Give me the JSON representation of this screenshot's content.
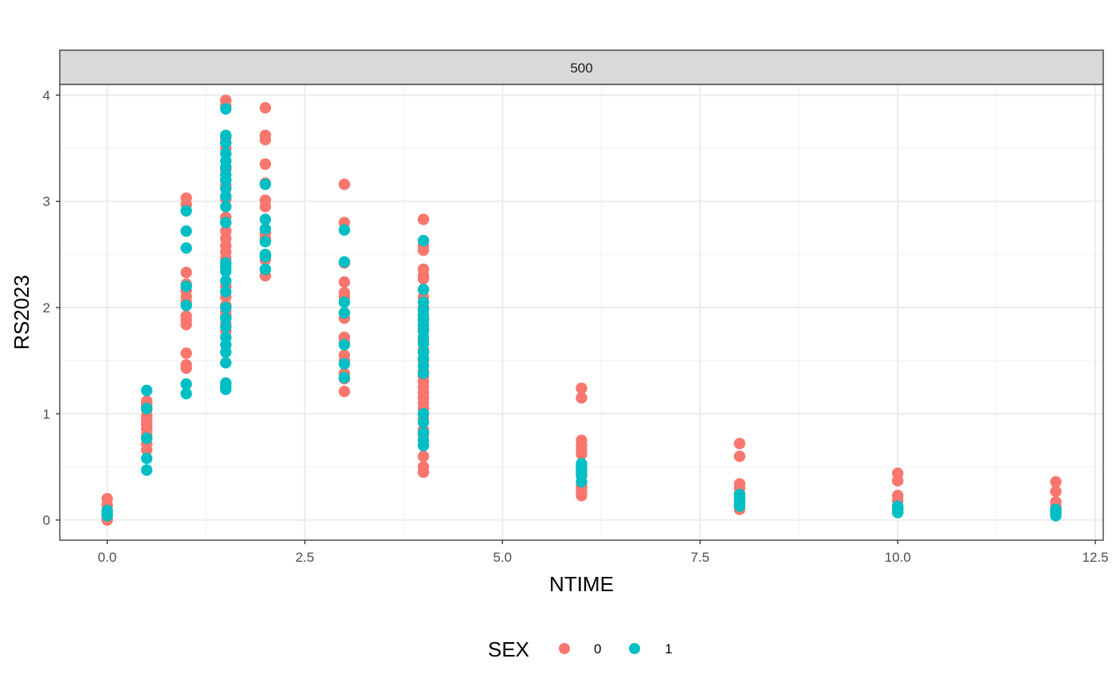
{
  "chart_data": {
    "type": "scatter",
    "facet": "500",
    "xlabel": "NTIME",
    "ylabel": "RS2023",
    "xlim": [
      -0.6,
      12.6
    ],
    "ylim": [
      -0.19,
      4.1
    ],
    "x_ticks": [
      0,
      2.5,
      5,
      7.5,
      10,
      12.5
    ],
    "x_tick_labels": [
      "0.0",
      "2.5",
      "5.0",
      "7.5",
      "10.0",
      "12.5"
    ],
    "y_ticks": [
      0,
      1,
      2,
      3,
      4
    ],
    "y_tick_labels": [
      "0",
      "1",
      "2",
      "3",
      "4"
    ],
    "grid": true,
    "legend": {
      "title": "SEX",
      "position": "bottom",
      "labels": [
        "0",
        "1"
      ]
    },
    "colors": {
      "0": "#F8766D",
      "1": "#00BFC4"
    },
    "series": [
      {
        "name": "0",
        "points": [
          [
            0,
            0.2
          ],
          [
            0,
            0.14
          ],
          [
            0,
            0.09
          ],
          [
            0,
            0.05
          ],
          [
            0,
            0.02
          ],
          [
            0,
            0.0
          ],
          [
            0.5,
            1.12
          ],
          [
            0.5,
            1.08
          ],
          [
            0.5,
            1.04
          ],
          [
            0.5,
            0.98
          ],
          [
            0.5,
            0.94
          ],
          [
            0.5,
            0.9
          ],
          [
            0.5,
            0.86
          ],
          [
            0.5,
            0.8
          ],
          [
            0.5,
            0.72
          ],
          [
            0.5,
            0.66
          ],
          [
            1,
            3.03
          ],
          [
            1,
            2.97
          ],
          [
            1,
            2.33
          ],
          [
            1,
            2.22
          ],
          [
            1,
            2.16
          ],
          [
            1,
            2.1
          ],
          [
            1,
            2.05
          ],
          [
            1,
            1.92
          ],
          [
            1,
            1.88
          ],
          [
            1,
            1.84
          ],
          [
            1,
            1.57
          ],
          [
            1,
            1.46
          ],
          [
            1,
            1.43
          ],
          [
            1.5,
            3.95
          ],
          [
            1.5,
            3.9
          ],
          [
            1.5,
            3.6
          ],
          [
            1.5,
            3.55
          ],
          [
            1.5,
            3.5
          ],
          [
            1.5,
            3.3
          ],
          [
            1.5,
            3.2
          ],
          [
            1.5,
            3.15
          ],
          [
            1.5,
            3.02
          ],
          [
            1.5,
            2.85
          ],
          [
            1.5,
            2.72
          ],
          [
            1.5,
            2.65
          ],
          [
            1.5,
            2.58
          ],
          [
            1.5,
            2.52
          ],
          [
            1.5,
            2.46
          ],
          [
            1.5,
            2.2
          ],
          [
            1.5,
            2.1
          ],
          [
            1.5,
            2.02
          ],
          [
            1.5,
            1.96
          ],
          [
            1.5,
            1.92
          ],
          [
            1.5,
            1.85
          ],
          [
            1.5,
            1.78
          ],
          [
            2,
            3.88
          ],
          [
            2,
            3.62
          ],
          [
            2,
            3.58
          ],
          [
            2,
            3.35
          ],
          [
            2,
            3.17
          ],
          [
            2,
            3.01
          ],
          [
            2,
            2.95
          ],
          [
            2,
            2.7
          ],
          [
            2,
            2.65
          ],
          [
            2,
            2.45
          ],
          [
            2,
            2.3
          ],
          [
            3,
            3.16
          ],
          [
            3,
            2.8
          ],
          [
            3,
            2.42
          ],
          [
            3,
            2.24
          ],
          [
            3,
            2.14
          ],
          [
            3,
            2.1
          ],
          [
            3,
            1.95
          ],
          [
            3,
            1.9
          ],
          [
            3,
            1.72
          ],
          [
            3,
            1.67
          ],
          [
            3,
            1.55
          ],
          [
            3,
            1.5
          ],
          [
            3,
            1.38
          ],
          [
            3,
            1.33
          ],
          [
            3,
            1.21
          ],
          [
            4,
            2.83
          ],
          [
            4,
            2.58
          ],
          [
            4,
            2.54
          ],
          [
            4,
            2.36
          ],
          [
            4,
            2.3
          ],
          [
            4,
            2.27
          ],
          [
            4,
            2.1
          ],
          [
            4,
            2.0
          ],
          [
            4,
            1.9
          ],
          [
            4,
            1.8
          ],
          [
            4,
            1.7
          ],
          [
            4,
            1.6
          ],
          [
            4,
            1.5
          ],
          [
            4,
            1.4
          ],
          [
            4,
            1.35
          ],
          [
            4,
            1.3
          ],
          [
            4,
            1.25
          ],
          [
            4,
            1.2
          ],
          [
            4,
            1.15
          ],
          [
            4,
            1.1
          ],
          [
            4,
            1.05
          ],
          [
            4,
            0.95
          ],
          [
            4,
            0.85
          ],
          [
            4,
            0.8
          ],
          [
            4,
            0.75
          ],
          [
            4,
            0.6
          ],
          [
            4,
            0.5
          ],
          [
            4,
            0.45
          ],
          [
            6,
            1.24
          ],
          [
            6,
            1.15
          ],
          [
            6,
            0.75
          ],
          [
            6,
            0.7
          ],
          [
            6,
            0.66
          ],
          [
            6,
            0.62
          ],
          [
            6,
            0.42
          ],
          [
            6,
            0.32
          ],
          [
            6,
            0.28
          ],
          [
            6,
            0.25
          ],
          [
            6,
            0.23
          ],
          [
            8,
            0.72
          ],
          [
            8,
            0.6
          ],
          [
            8,
            0.34
          ],
          [
            8,
            0.3
          ],
          [
            8,
            0.25
          ],
          [
            8,
            0.2
          ],
          [
            8,
            0.14
          ],
          [
            8,
            0.1
          ],
          [
            10,
            0.44
          ],
          [
            10,
            0.37
          ],
          [
            10,
            0.23
          ],
          [
            10,
            0.18
          ],
          [
            10,
            0.12
          ],
          [
            10,
            0.08
          ],
          [
            12,
            0.36
          ],
          [
            12,
            0.27
          ],
          [
            12,
            0.17
          ],
          [
            12,
            0.13
          ],
          [
            12,
            0.08
          ]
        ]
      },
      {
        "name": "1",
        "points": [
          [
            0,
            0.09
          ],
          [
            0,
            0.07
          ],
          [
            0,
            0.05
          ],
          [
            0,
            0.04
          ],
          [
            0.5,
            1.22
          ],
          [
            0.5,
            1.05
          ],
          [
            0.5,
            0.77
          ],
          [
            0.5,
            0.58
          ],
          [
            0.5,
            0.47
          ],
          [
            1,
            2.91
          ],
          [
            1,
            2.72
          ],
          [
            1,
            2.56
          ],
          [
            1,
            2.2
          ],
          [
            1,
            2.02
          ],
          [
            1,
            1.28
          ],
          [
            1,
            1.19
          ],
          [
            1.5,
            3.87
          ],
          [
            1.5,
            3.62
          ],
          [
            1.5,
            3.55
          ],
          [
            1.5,
            3.45
          ],
          [
            1.5,
            3.38
          ],
          [
            1.5,
            3.32
          ],
          [
            1.5,
            3.25
          ],
          [
            1.5,
            3.2
          ],
          [
            1.5,
            3.12
          ],
          [
            1.5,
            3.05
          ],
          [
            1.5,
            2.95
          ],
          [
            1.5,
            2.8
          ],
          [
            1.5,
            2.42
          ],
          [
            1.5,
            2.38
          ],
          [
            1.5,
            2.34
          ],
          [
            1.5,
            2.25
          ],
          [
            1.5,
            2.15
          ],
          [
            1.5,
            2.0
          ],
          [
            1.5,
            1.9
          ],
          [
            1.5,
            1.82
          ],
          [
            1.5,
            1.72
          ],
          [
            1.5,
            1.65
          ],
          [
            1.5,
            1.58
          ],
          [
            1.5,
            1.48
          ],
          [
            1.5,
            1.29
          ],
          [
            1.5,
            1.26
          ],
          [
            1.5,
            1.23
          ],
          [
            2,
            3.16
          ],
          [
            2,
            2.83
          ],
          [
            2,
            2.74
          ],
          [
            2,
            2.62
          ],
          [
            2,
            2.5
          ],
          [
            2,
            2.48
          ],
          [
            2,
            2.36
          ],
          [
            3,
            2.73
          ],
          [
            3,
            2.43
          ],
          [
            3,
            2.05
          ],
          [
            3,
            1.95
          ],
          [
            3,
            1.65
          ],
          [
            3,
            1.47
          ],
          [
            3,
            1.34
          ],
          [
            4,
            2.63
          ],
          [
            4,
            2.17
          ],
          [
            4,
            2.05
          ],
          [
            4,
            1.98
          ],
          [
            4,
            1.93
          ],
          [
            4,
            1.88
          ],
          [
            4,
            1.83
          ],
          [
            4,
            1.78
          ],
          [
            4,
            1.72
          ],
          [
            4,
            1.66
          ],
          [
            4,
            1.58
          ],
          [
            4,
            1.52
          ],
          [
            4,
            1.45
          ],
          [
            4,
            1.38
          ],
          [
            4,
            1.0
          ],
          [
            4,
            0.92
          ],
          [
            4,
            0.82
          ],
          [
            4,
            0.75
          ],
          [
            4,
            0.7
          ],
          [
            6,
            0.53
          ],
          [
            6,
            0.5
          ],
          [
            6,
            0.48
          ],
          [
            6,
            0.45
          ],
          [
            6,
            0.42
          ],
          [
            6,
            0.36
          ],
          [
            8,
            0.24
          ],
          [
            8,
            0.21
          ],
          [
            8,
            0.18
          ],
          [
            8,
            0.15
          ],
          [
            8,
            0.13
          ],
          [
            10,
            0.13
          ],
          [
            10,
            0.11
          ],
          [
            10,
            0.09
          ],
          [
            10,
            0.07
          ],
          [
            12,
            0.1
          ],
          [
            12,
            0.07
          ],
          [
            12,
            0.05
          ],
          [
            12,
            0.04
          ]
        ]
      }
    ]
  }
}
